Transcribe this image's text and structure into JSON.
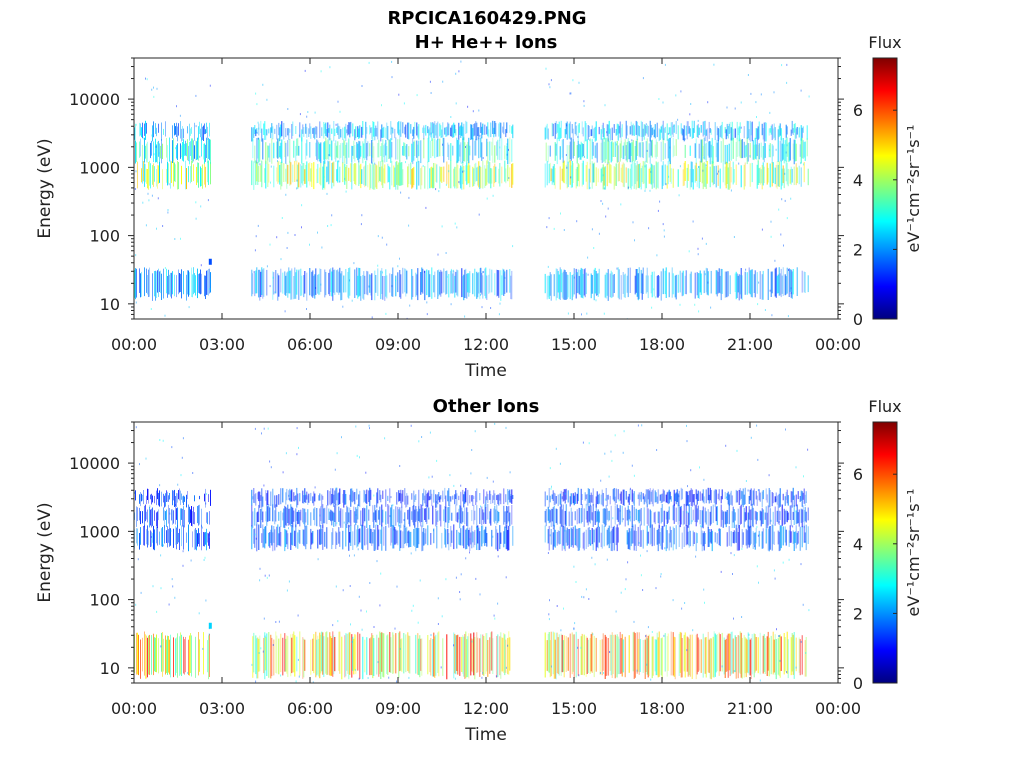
{
  "title": "RPCICA160429.PNG",
  "colors": {
    "axis": "#262626",
    "colormap": [
      "#00007f",
      "#0000ff",
      "#007fff",
      "#00ffff",
      "#7fff7f",
      "#ffff00",
      "#ff7f00",
      "#ff0000",
      "#7f0000"
    ]
  },
  "chart_data": [
    {
      "type": "heatmap",
      "title": "H+ He++ Ions",
      "xlabel": "Time",
      "ylabel": "Energy (eV)",
      "x_ticks": [
        "00:00",
        "03:00",
        "06:00",
        "09:00",
        "12:00",
        "15:00",
        "18:00",
        "21:00",
        "00:00"
      ],
      "xlim_hours": [
        0,
        24
      ],
      "y_scale": "log",
      "ylim": [
        6,
        40000
      ],
      "y_ticks": [
        10,
        100,
        1000,
        10000
      ],
      "y_tick_labels": [
        "10",
        "100",
        "1000",
        "10000"
      ],
      "colorbar": {
        "label_top": "Flux",
        "label": "eV⁻¹cm⁻²sr⁻¹s⁻¹",
        "range": [
          0,
          7.5
        ],
        "ticks": [
          0,
          2,
          4,
          6
        ],
        "tick_labels": [
          "0",
          "2",
          "4",
          "6"
        ]
      },
      "data_intervals_hours": [
        [
          0,
          2.6
        ],
        [
          4.0,
          12.9
        ],
        [
          14.0,
          23.0
        ]
      ],
      "bands": [
        {
          "e_low": 13,
          "e_high": 30,
          "flux": 2.0,
          "spike": [
            2.55,
            40,
            1.5
          ]
        },
        {
          "e_low": 550,
          "e_high": 1100,
          "flux": 3.8
        },
        {
          "e_low": 1300,
          "e_high": 2400,
          "flux": 2.8
        },
        {
          "e_low": 2800,
          "e_high": 4200,
          "flux": 2.2
        }
      ]
    },
    {
      "type": "heatmap",
      "title": "Other Ions",
      "xlabel": "Time",
      "ylabel": "Energy (eV)",
      "x_ticks": [
        "00:00",
        "03:00",
        "06:00",
        "09:00",
        "12:00",
        "15:00",
        "18:00",
        "21:00",
        "00:00"
      ],
      "xlim_hours": [
        0,
        24
      ],
      "y_scale": "log",
      "ylim": [
        6,
        40000
      ],
      "y_ticks": [
        10,
        100,
        1000,
        10000
      ],
      "y_tick_labels": [
        "10",
        "100",
        "1000",
        "10000"
      ],
      "colorbar": {
        "label_top": "Flux",
        "label": "eV⁻¹cm⁻²sr⁻¹s⁻¹",
        "range": [
          0,
          7.5
        ],
        "ticks": [
          0,
          2,
          4,
          6
        ],
        "tick_labels": [
          "0",
          "2",
          "4",
          "6"
        ]
      },
      "data_intervals_hours": [
        [
          0,
          2.6
        ],
        [
          4.0,
          12.9
        ],
        [
          14.0,
          23.0
        ]
      ],
      "bands": [
        {
          "e_low": 8,
          "e_high": 30,
          "flux": 4.8,
          "spike": [
            2.55,
            40,
            2.5
          ]
        },
        {
          "e_low": 600,
          "e_high": 1100,
          "flux": 1.6
        },
        {
          "e_low": 1300,
          "e_high": 2200,
          "flux": 1.5
        },
        {
          "e_low": 2600,
          "e_high": 3800,
          "flux": 1.4
        }
      ]
    }
  ]
}
